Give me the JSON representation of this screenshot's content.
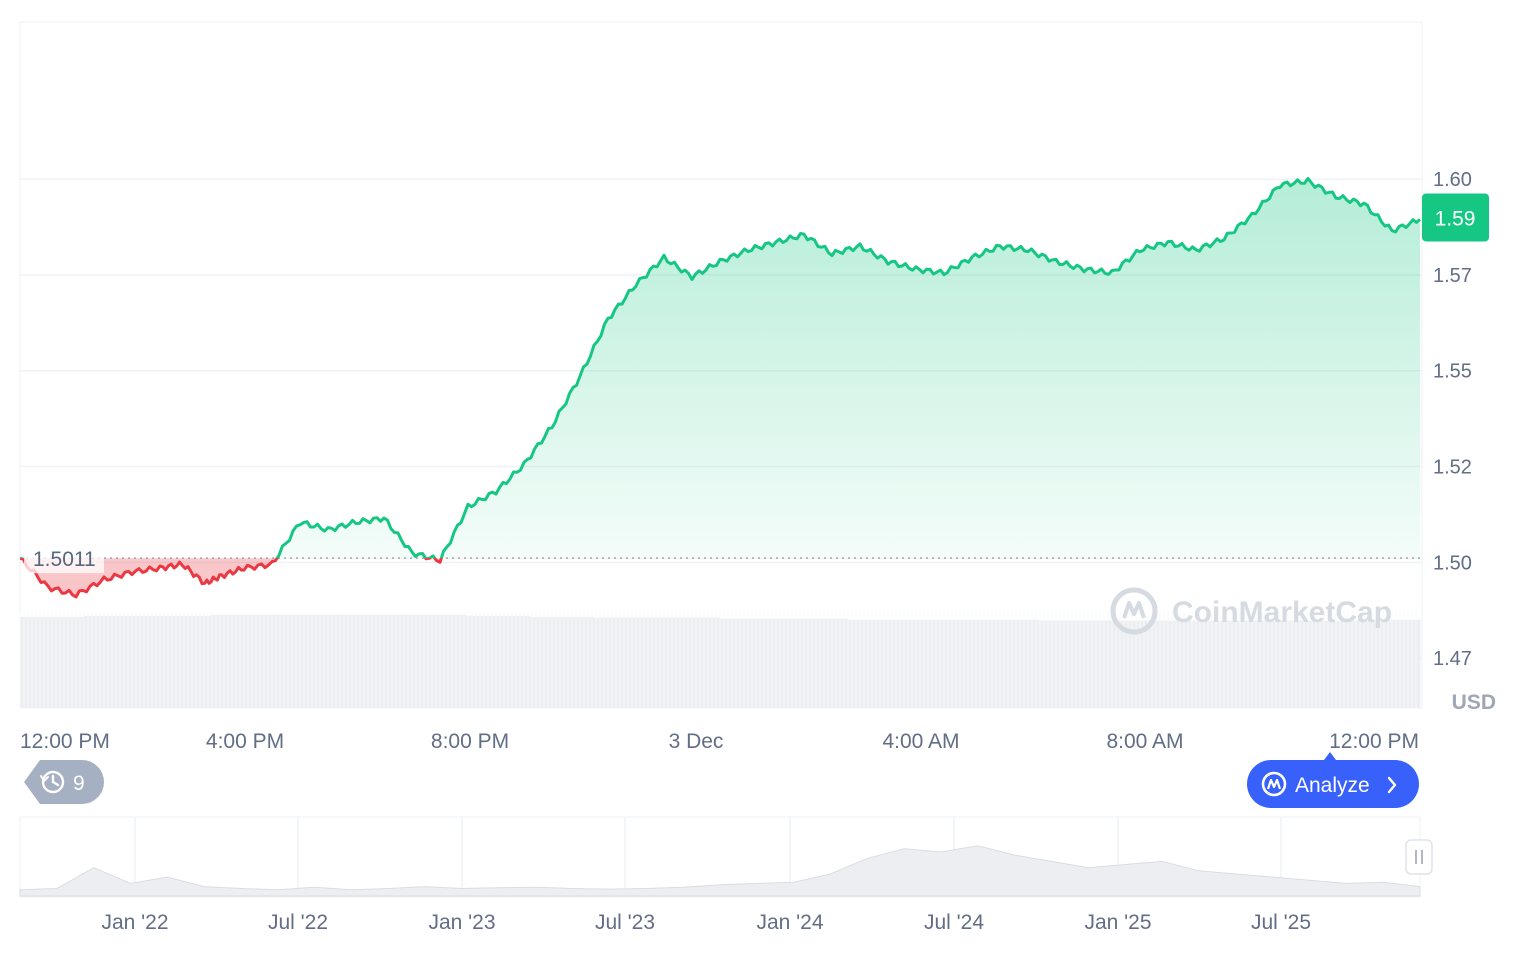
{
  "chart_data": {
    "type": "area",
    "currency_unit": "USD",
    "reference_value": 1.5011,
    "reference_label": "1.5011",
    "current_price": 1.59,
    "current_price_label": "1.59",
    "ylim": [
      1.462,
      1.641
    ],
    "y_ticks": [
      {
        "value": 1.475,
        "label": "1.47"
      },
      {
        "value": 1.5,
        "label": "1.50"
      },
      {
        "value": 1.525,
        "label": "1.52"
      },
      {
        "value": 1.55,
        "label": "1.55"
      },
      {
        "value": 1.575,
        "label": "1.57"
      },
      {
        "value": 1.6,
        "label": "1.60"
      }
    ],
    "x_ticks": [
      "12:00 PM",
      "4:00 PM",
      "8:00 PM",
      "3 Dec",
      "4:00 AM",
      "8:00 AM",
      "12:00 PM"
    ],
    "x_hours": [
      0,
      0.5,
      1,
      1.5,
      2,
      2.5,
      2.9,
      3.3,
      3.6,
      4.0,
      4.5,
      5.0,
      5.5,
      6.0,
      6.5,
      7.0,
      7.5,
      8.0,
      8.5,
      9.0,
      9.5,
      10.0,
      10.5,
      11.0,
      11.5,
      12.0,
      12.5,
      13.0,
      13.5,
      14.0,
      14.5,
      15.0,
      15.5,
      16.0,
      16.5,
      17.0,
      17.5,
      18.0,
      18.5,
      19.0,
      19.5,
      20.0,
      20.5,
      21.0,
      21.5,
      22.0,
      22.5,
      23.0,
      23.5,
      24.0,
      24.5,
      25.0
    ],
    "prices": [
      1.5011,
      1.4935,
      1.4915,
      1.4955,
      1.4975,
      1.4985,
      1.4995,
      1.4945,
      1.4965,
      1.4985,
      1.4995,
      1.5105,
      1.5085,
      1.5105,
      1.5115,
      1.5025,
      1.5005,
      1.5145,
      1.5185,
      1.5255,
      1.5355,
      1.5485,
      1.5635,
      1.5725,
      1.5795,
      1.5745,
      1.5785,
      1.5815,
      1.5835,
      1.5855,
      1.5805,
      1.5825,
      1.5785,
      1.5765,
      1.5755,
      1.5795,
      1.5825,
      1.5815,
      1.5785,
      1.5765,
      1.5755,
      1.5815,
      1.5835,
      1.5815,
      1.5845,
      1.5905,
      1.5985,
      1.5995,
      1.5955,
      1.5935,
      1.5865,
      1.5895
    ],
    "volume_level": [
      0.95,
      0.96,
      0.96,
      0.97,
      0.97,
      0.97,
      0.97,
      0.96,
      0.95,
      0.94,
      0.94,
      0.93,
      0.93,
      0.92,
      0.92,
      0.92,
      0.91,
      0.91,
      0.91,
      0.91,
      0.91,
      0.92
    ],
    "navigator_x_ticks": [
      "Jan '22",
      "Jul '22",
      "Jan '23",
      "Jul '23",
      "Jan '24",
      "Jul '24",
      "Jan '25",
      "Jul '25"
    ],
    "navigator_level": [
      0.1,
      0.12,
      0.45,
      0.2,
      0.3,
      0.15,
      0.12,
      0.1,
      0.14,
      0.1,
      0.12,
      0.15,
      0.12,
      0.13,
      0.14,
      0.12,
      0.11,
      0.12,
      0.14,
      0.18,
      0.2,
      0.22,
      0.35,
      0.6,
      0.75,
      0.7,
      0.8,
      0.65,
      0.55,
      0.45,
      0.5,
      0.55,
      0.4,
      0.35,
      0.3,
      0.25,
      0.2,
      0.22,
      0.15
    ],
    "colors": {
      "up": "#16c784",
      "down": "#ea3943",
      "grid": "#eff2f5",
      "tag": "#16c784",
      "button": "#3861fb",
      "badge": "#a6b0c3"
    }
  },
  "watermark": {
    "text": "CoinMarketCap"
  },
  "history_badge": {
    "count": "9",
    "icon": "history-icon"
  },
  "analyze_button": {
    "label": "Analyze",
    "icon": "cmc-logo-icon"
  },
  "navigator_handle": {
    "icon": "pause-bars-icon"
  }
}
